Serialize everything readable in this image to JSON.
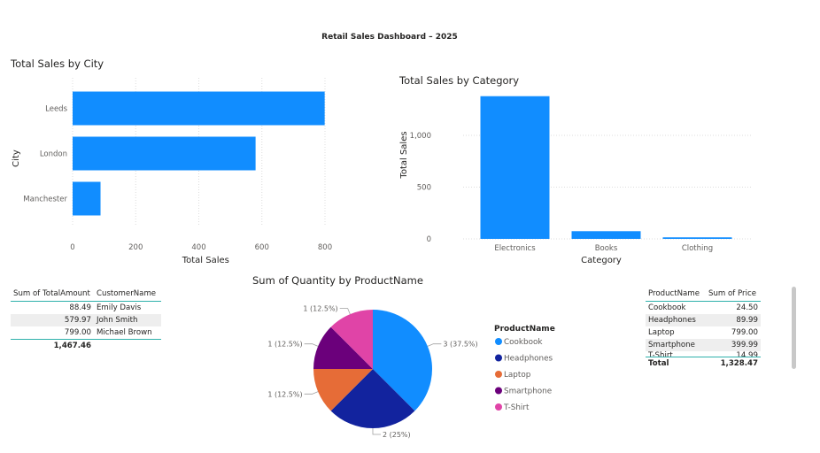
{
  "dashboard": {
    "title": "Retail Sales Dashboard – 2025"
  },
  "chart_data": [
    {
      "type": "bar",
      "orientation": "horizontal",
      "title": "Total Sales by City",
      "categories": [
        "Leeds",
        "London",
        "Manchester"
      ],
      "values": [
        799.0,
        579.97,
        88.49
      ],
      "xlabel": "Total Sales",
      "ylabel": "City",
      "xlim": [
        0,
        900
      ],
      "xticks": [
        "0",
        "200",
        "400",
        "600",
        "800"
      ],
      "color": "#118DFF",
      "grid": true
    },
    {
      "type": "bar",
      "title": "Total Sales by Category",
      "categories": [
        "Electronics",
        "Books",
        "Clothing"
      ],
      "values": [
        1378.49,
        74.5,
        14.99
      ],
      "xlabel": "Category",
      "ylabel": "Total Sales",
      "ylim": [
        0,
        1400
      ],
      "yticks": [
        "0",
        "500",
        "1,000"
      ],
      "color": "#118DFF",
      "grid": true
    },
    {
      "type": "pie",
      "title": "Sum of Quantity by ProductName",
      "legend_title": "ProductName",
      "legend_position": "right",
      "slices": [
        {
          "label": "Cookbook",
          "value": 3,
          "data_label": "3 (37.5%)",
          "color": "#118DFF"
        },
        {
          "label": "Headphones",
          "value": 2,
          "data_label": "2 (25%)",
          "color": "#12239E"
        },
        {
          "label": "Laptop",
          "value": 1,
          "data_label": "1 (12.5%)",
          "color": "#E66C37"
        },
        {
          "label": "Smartphone",
          "value": 1,
          "data_label": "1 (12.5%)",
          "color": "#6B007B"
        },
        {
          "label": "T-Shirt",
          "value": 1,
          "data_label": "1 (12.5%)",
          "color": "#E044A7"
        }
      ]
    }
  ],
  "customer_table": {
    "headers": [
      "Sum of TotalAmount",
      "CustomerName"
    ],
    "rows": [
      [
        "88.49",
        "Emily Davis"
      ],
      [
        "579.97",
        "John Smith"
      ],
      [
        "799.00",
        "Michael Brown"
      ]
    ],
    "total": "1,467.46"
  },
  "product_table": {
    "headers": [
      "ProductName",
      "Sum of Price"
    ],
    "rows": [
      [
        "Cookbook",
        "24.50"
      ],
      [
        "Headphones",
        "89.99"
      ],
      [
        "Laptop",
        "799.00"
      ],
      [
        "Smartphone",
        "399.99"
      ],
      [
        "T-Shirt",
        "14.99"
      ]
    ],
    "total_label": "Total",
    "total": "1,328.47"
  },
  "colors": {
    "accent": "#118DFF",
    "table_rule": "#2fb1ab",
    "band": "#eeeeee"
  }
}
